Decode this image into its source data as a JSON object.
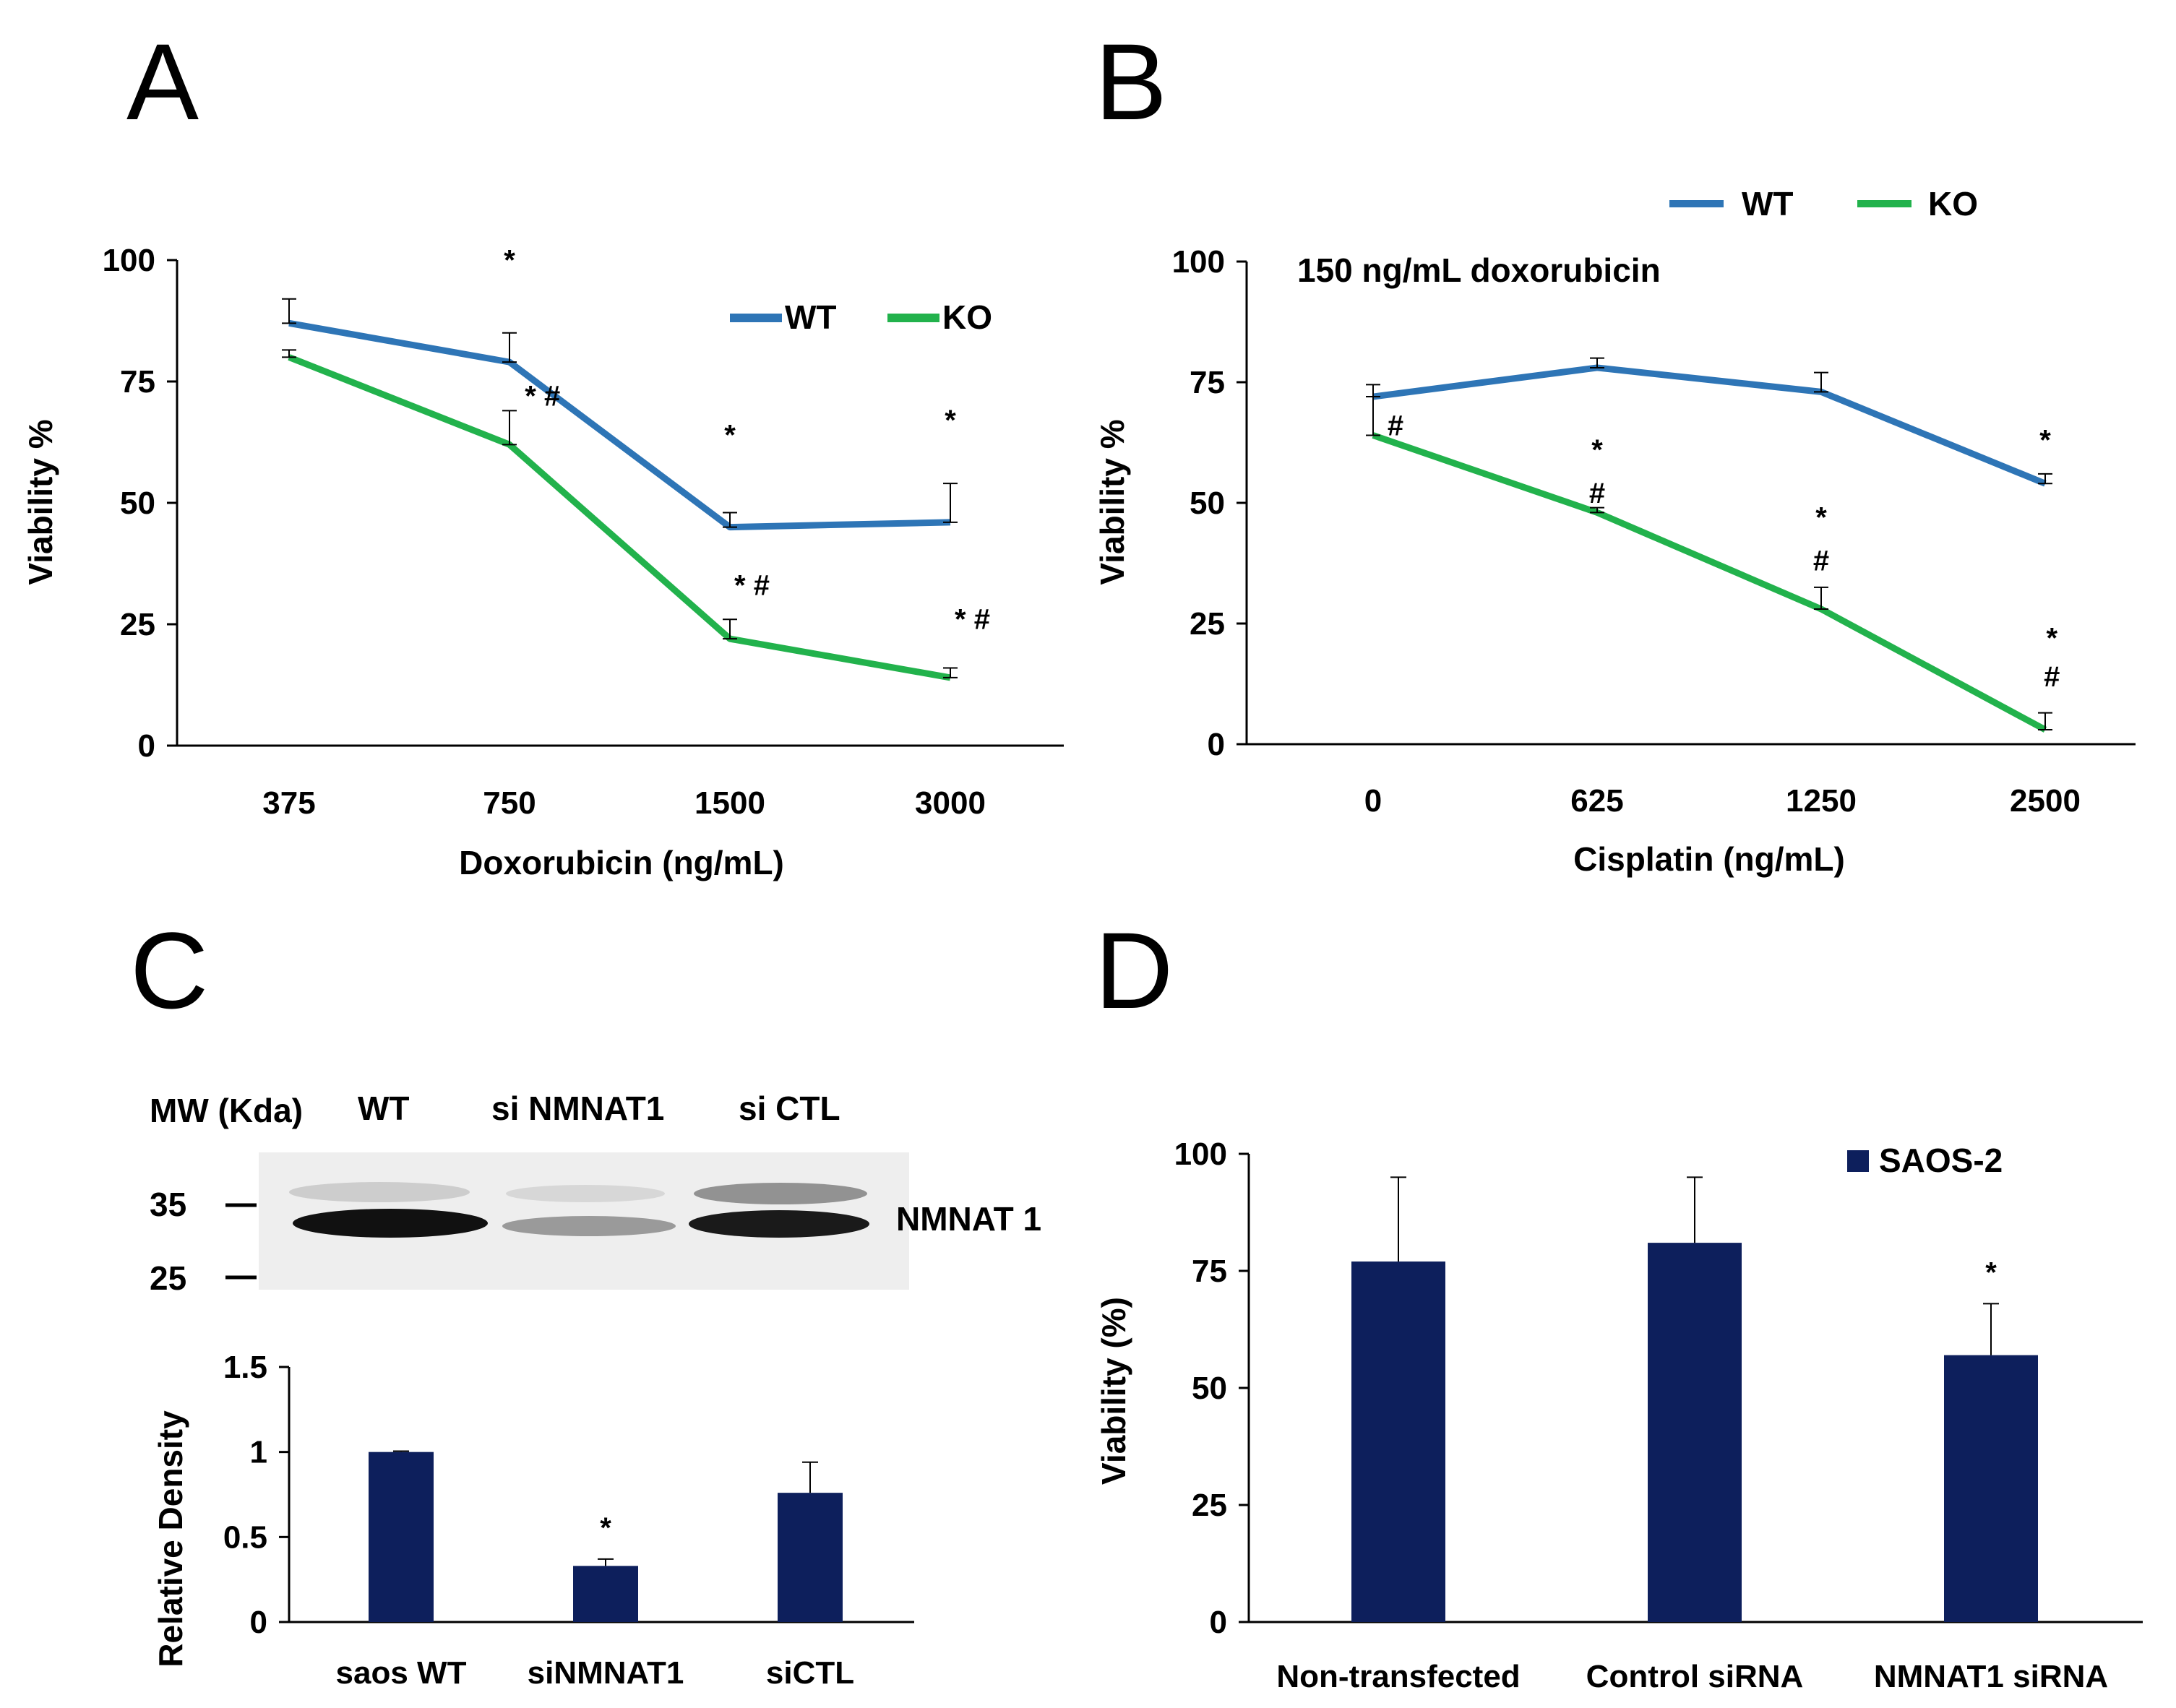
{
  "colors": {
    "wt": "#2E75B6",
    "ko": "#22B24C",
    "bar": "#0D1F5C",
    "axis": "#000000"
  },
  "chart_data": [
    {
      "panel": "A",
      "type": "line",
      "xlabel": "Doxorubicin (ng/mL)",
      "ylabel": "Viability %",
      "categories": [
        "375",
        "750",
        "1500",
        "3000"
      ],
      "ylim": [
        0,
        100
      ],
      "yticks": [
        0,
        25,
        50,
        75,
        100
      ],
      "legend_position": "top-right",
      "series": [
        {
          "name": "WT",
          "color": "#2E75B6",
          "values": [
            87,
            79,
            45,
            46
          ],
          "errors": [
            5,
            6,
            3,
            8
          ]
        },
        {
          "name": "KO",
          "color": "#22B24C",
          "values": [
            80,
            62,
            22,
            14
          ],
          "errors": [
            1.5,
            7,
            4,
            2
          ]
        }
      ],
      "annotations": [
        {
          "text": "*",
          "x_index": 1,
          "y": 98
        },
        {
          "text": "* #",
          "x_index": 1.15,
          "y": 70
        },
        {
          "text": "*",
          "x_index": 2,
          "y": 62
        },
        {
          "text": "*  #",
          "x_index": 2.1,
          "y": 31
        },
        {
          "text": "*",
          "x_index": 3,
          "y": 65
        },
        {
          "text": "*  #",
          "x_index": 3.1,
          "y": 24
        }
      ]
    },
    {
      "panel": "B",
      "type": "line",
      "subtitle": "150  ng/mL doxorubicin",
      "xlabel": "Cisplatin (ng/mL)",
      "ylabel": "Viability %",
      "categories": [
        "0",
        "625",
        "1250",
        "2500"
      ],
      "ylim": [
        0,
        100
      ],
      "yticks": [
        0,
        25,
        50,
        75,
        100
      ],
      "legend_position": "top",
      "series": [
        {
          "name": "WT",
          "color": "#2E75B6",
          "values": [
            72,
            78,
            73,
            54
          ],
          "errors": [
            2.5,
            2,
            4,
            2
          ]
        },
        {
          "name": "KO",
          "color": "#22B24C",
          "values": [
            64,
            48,
            28,
            3
          ],
          "errors": [
            8,
            1,
            4.5,
            3.5
          ]
        }
      ],
      "annotations": [
        {
          "text": "#",
          "x_index": 0.1,
          "y": 64
        },
        {
          "text": "*",
          "x_index": 1,
          "y": 59
        },
        {
          "text": "#",
          "x_index": 1,
          "y": 50
        },
        {
          "text": "*",
          "x_index": 2,
          "y": 45
        },
        {
          "text": "#",
          "x_index": 2,
          "y": 36
        },
        {
          "text": "*",
          "x_index": 3,
          "y": 61
        },
        {
          "text": "*",
          "x_index": 3.03,
          "y": 20
        },
        {
          "text": "#",
          "x_index": 3.03,
          "y": 12
        }
      ]
    },
    {
      "panel": "C",
      "type": "bar",
      "ylabel": "Relative Density",
      "categories": [
        "saos WT",
        "siNMNAT1",
        "siCTL"
      ],
      "values": [
        1.0,
        0.33,
        0.76
      ],
      "errors": [
        0.005,
        0.04,
        0.18
      ],
      "ylim": [
        0,
        1.5
      ],
      "yticks": [
        "0",
        "0.5",
        "1",
        "1.5"
      ],
      "annotations": [
        {
          "text": "*",
          "category_index": 1
        }
      ],
      "blot": {
        "header": [
          "MW (Kda)",
          "WT",
          "si NMNAT1",
          "si CTL"
        ],
        "markers": [
          "35",
          "25"
        ],
        "band_label": "NMNAT 1"
      }
    },
    {
      "panel": "D",
      "type": "bar",
      "ylabel": "Viability (%)",
      "categories": [
        "Non-transfected",
        "Control siRNA",
        "NMNAT1 siRNA"
      ],
      "values": [
        77,
        81,
        57
      ],
      "errors": [
        18,
        14,
        11
      ],
      "ylim": [
        0,
        100
      ],
      "yticks": [
        0,
        25,
        50,
        75,
        100
      ],
      "legend": [
        "SAOS-2"
      ],
      "legend_position": "top-right",
      "annotations": [
        {
          "text": "*",
          "category_index": 2
        }
      ]
    }
  ],
  "panel_letters": [
    "A",
    "B",
    "C",
    "D"
  ]
}
